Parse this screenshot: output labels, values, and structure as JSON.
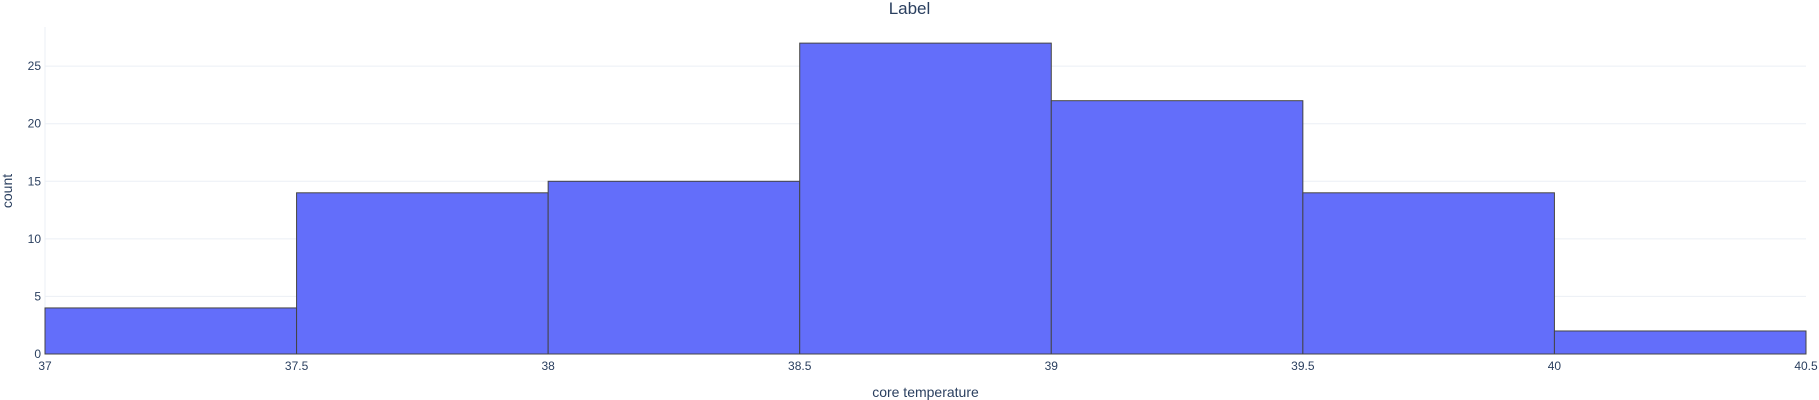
{
  "chart_data": {
    "type": "bar",
    "title": "Label",
    "xlabel": "core temperature",
    "ylabel": "count",
    "bin_edges": [
      37,
      37.5,
      38,
      38.5,
      39,
      39.5,
      40,
      40.5
    ],
    "values": [
      4,
      14,
      15,
      27,
      22,
      14,
      2
    ],
    "xlim": [
      37,
      40.5
    ],
    "ylim": [
      0,
      28.4
    ],
    "x_ticks": [
      37,
      37.5,
      38,
      38.5,
      39,
      39.5,
      40,
      40.5
    ],
    "x_tick_labels": [
      "37",
      "37.5",
      "38",
      "38.5",
      "39",
      "39.5",
      "40",
      "40.5"
    ],
    "y_ticks": [
      0,
      5,
      10,
      15,
      20,
      25
    ],
    "y_tick_labels": [
      "0",
      "5",
      "10",
      "15",
      "20",
      "25"
    ],
    "grid": true,
    "bar_color": "#636efa",
    "bar_outline_color": "#444444"
  }
}
